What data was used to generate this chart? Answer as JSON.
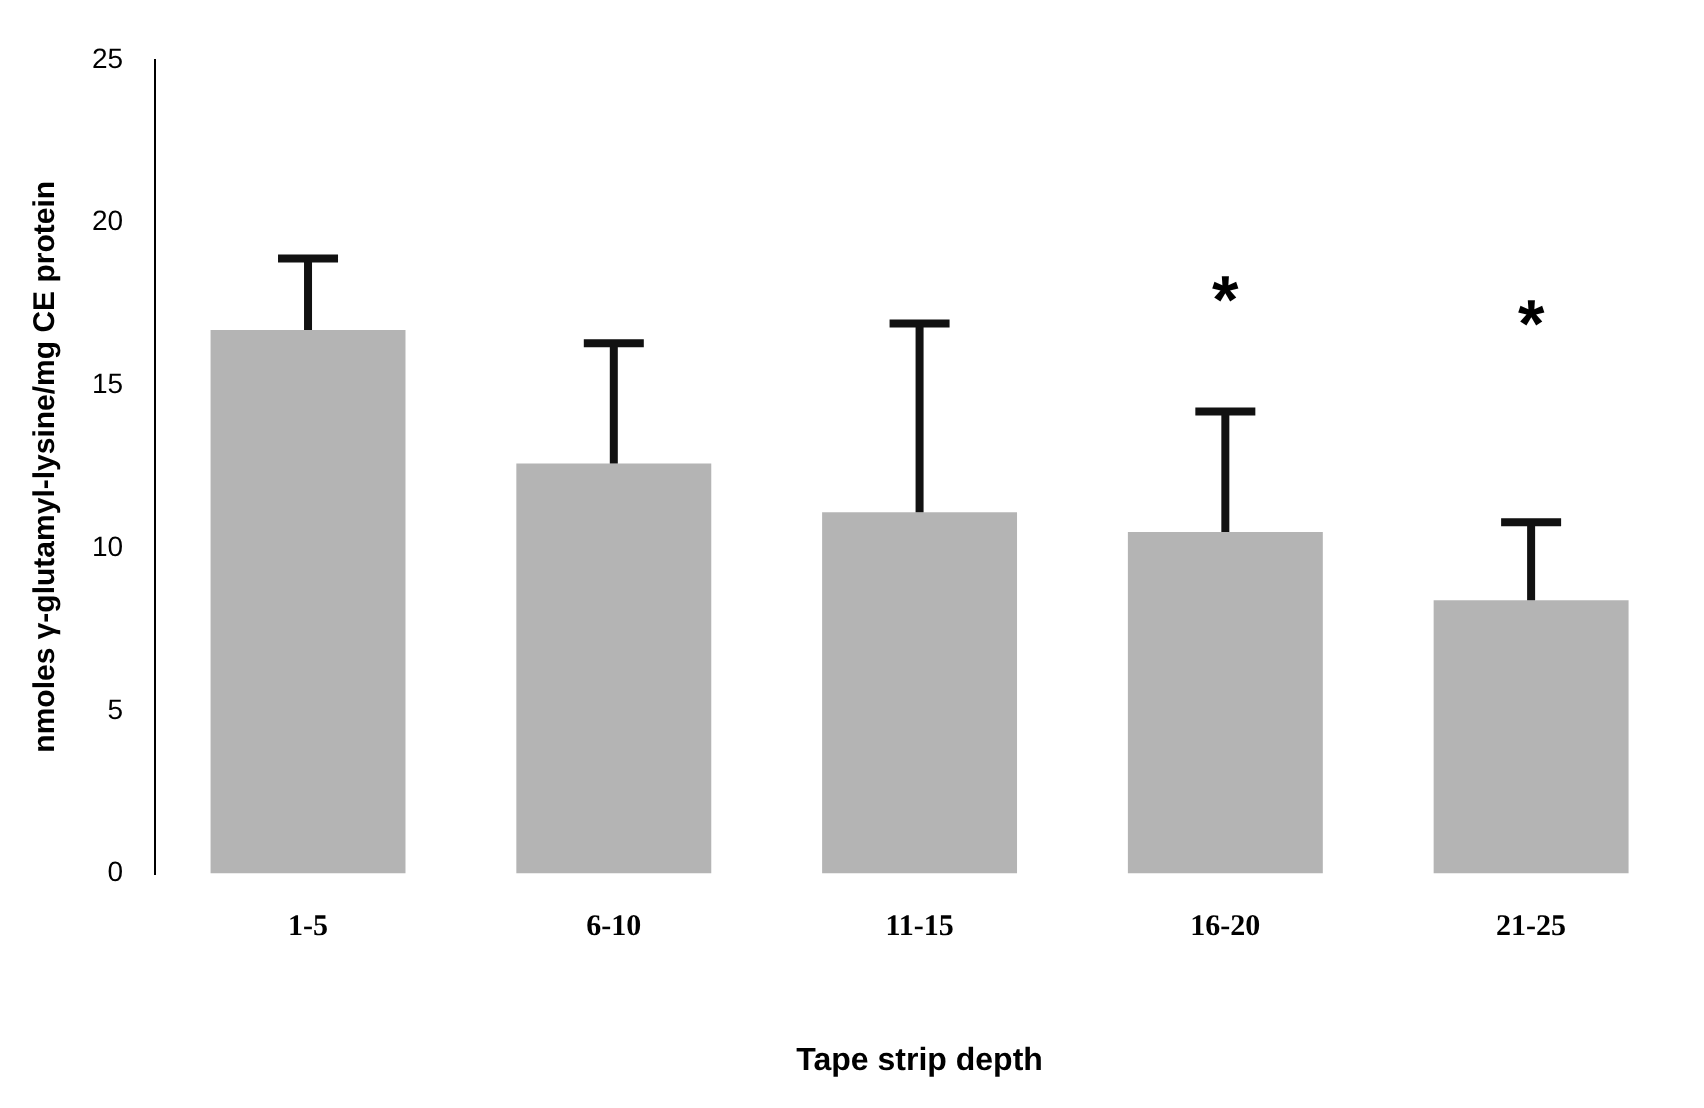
{
  "chart_data": {
    "type": "bar",
    "xlabel": "Tape strip depth",
    "ylabel": "nmoles γ-glutamyl-lysine/mg CE protein",
    "categories": [
      "1-5",
      "6-10",
      "11-15",
      "16-20",
      "21-25"
    ],
    "values": [
      16.7,
      12.6,
      11.1,
      10.5,
      8.4
    ],
    "errors": [
      [
        16.7,
        18.9
      ],
      [
        12.6,
        16.3
      ],
      [
        11.1,
        16.9
      ],
      [
        10.5,
        14.2
      ],
      [
        8.4,
        10.8
      ]
    ],
    "color": "#b4b4b4",
    "ylim": [
      0,
      25
    ],
    "yticks": [
      0,
      5,
      10,
      15,
      20,
      25
    ],
    "grid": false,
    "legend": false,
    "annotations": [
      "*",
      "*"
    ]
  }
}
